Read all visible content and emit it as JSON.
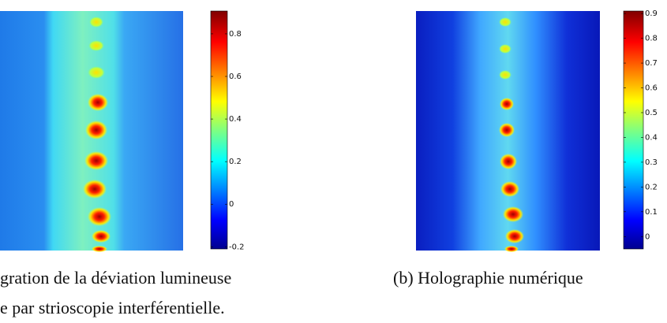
{
  "figures": [
    {
      "caption": [
        "gration de la déviation lumineuse",
        "e par strioscopie interférentielle."
      ],
      "colorbar": {
        "lim": [
          -0.21,
          0.907
        ],
        "ticks": [
          0.8,
          0.6,
          0.4,
          0.2,
          0,
          -0.2
        ]
      }
    },
    {
      "caption": [
        "(b) Holographie numérique"
      ],
      "colorbar": {
        "lim": [
          -0.05,
          0.91
        ],
        "ticks": [
          0.9,
          0.8,
          0.7,
          0.6,
          0.5,
          0.4,
          0.3,
          0.2,
          0.1,
          0
        ]
      }
    }
  ]
}
